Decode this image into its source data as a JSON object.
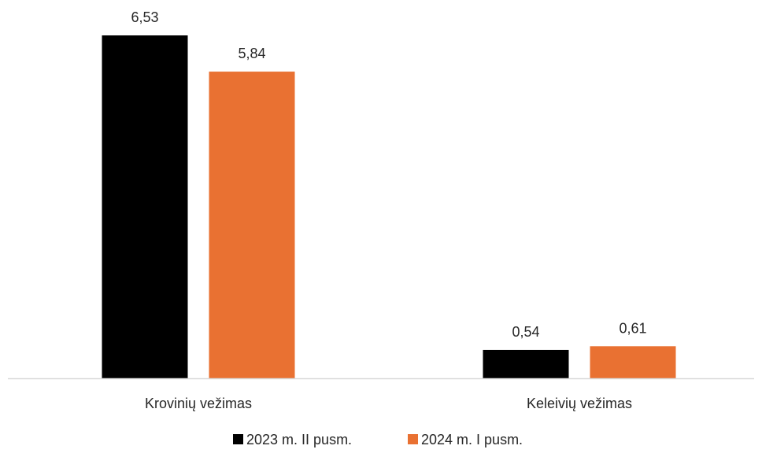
{
  "chart_data": {
    "type": "bar",
    "title": "",
    "xlabel": "",
    "ylabel": "",
    "categories": [
      "Krovinių vežimas",
      "Keleivių vežimas"
    ],
    "series": [
      {
        "name": "2023 m. II pusm.",
        "color": "#000000",
        "values": [
          6.53,
          0.54
        ],
        "labels": [
          "6,53",
          "0,54"
        ]
      },
      {
        "name": "2024 m. I pusm.",
        "color": "#E97132",
        "values": [
          5.84,
          0.61
        ],
        "labels": [
          "5,84",
          "0,61"
        ]
      }
    ],
    "ylim": [
      0,
      6.53
    ],
    "grid": false,
    "legend_position": "bottom",
    "axis_color": "#D9D9D9"
  }
}
